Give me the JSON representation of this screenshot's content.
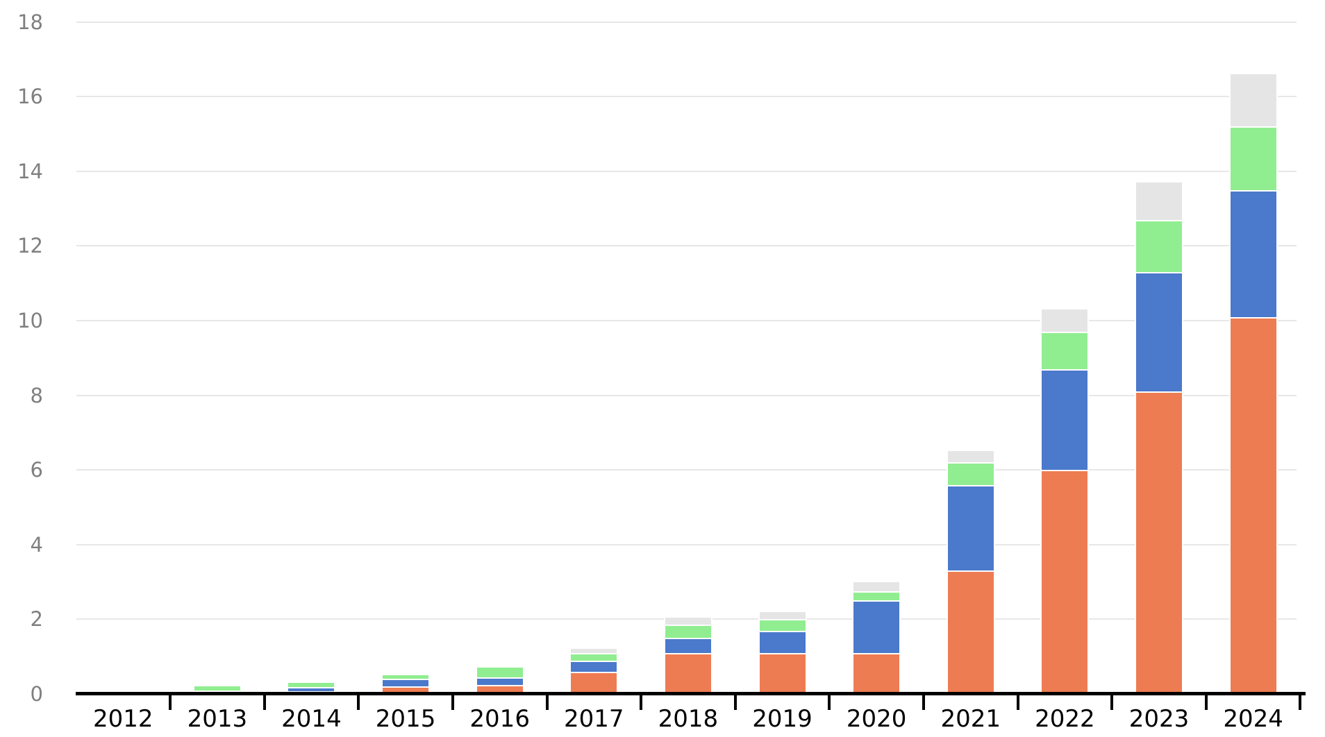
{
  "chart_data": {
    "type": "bar",
    "stacked": true,
    "title": "",
    "xlabel": "",
    "ylabel": "",
    "categories": [
      "2012",
      "2013",
      "2014",
      "2015",
      "2016",
      "2017",
      "2018",
      "2019",
      "2020",
      "2021",
      "2022",
      "2023",
      "2024"
    ],
    "series": [
      {
        "name": "orange",
        "color": "#EE7C52",
        "values": [
          0,
          0.02,
          0.08,
          0.2,
          0.25,
          0.6,
          1.1,
          1.1,
          1.1,
          3.3,
          6.0,
          8.1,
          10.1
        ]
      },
      {
        "name": "blue",
        "color": "#4B79CB",
        "values": [
          0,
          0.08,
          0.11,
          0.2,
          0.2,
          0.3,
          0.4,
          0.6,
          1.4,
          2.3,
          2.7,
          3.2,
          3.4
        ]
      },
      {
        "name": "green",
        "color": "#90EE90",
        "values": [
          0.05,
          0.1,
          0.11,
          0.1,
          0.25,
          0.2,
          0.35,
          0.3,
          0.25,
          0.6,
          1.0,
          1.4,
          1.7
        ]
      },
      {
        "name": "gray",
        "color": "#E5E5E5",
        "values": [
          0,
          0,
          0,
          0,
          0,
          0.1,
          0.2,
          0.2,
          0.25,
          0.3,
          0.6,
          1.0,
          1.4
        ]
      }
    ],
    "totals": [
      0.05,
      0.2,
      0.3,
      0.5,
      0.7,
      1.2,
      2.05,
      2.2,
      3.0,
      6.5,
      10.3,
      13.7,
      16.6
    ],
    "ylim": [
      0,
      18
    ],
    "ytick_step": 2,
    "y_tick_labels": [
      "0",
      "2",
      "4",
      "6",
      "8",
      "10",
      "12",
      "14",
      "16",
      "18"
    ],
    "grid": "horizontal",
    "legend": "none",
    "colors": {
      "gridline": "#E7E7E7",
      "axis": "#000000",
      "y_label_text": "#7F7F7F",
      "x_label_text": "#000000",
      "segment_border": "#FFFFFF",
      "background": "#FFFFFF"
    }
  }
}
